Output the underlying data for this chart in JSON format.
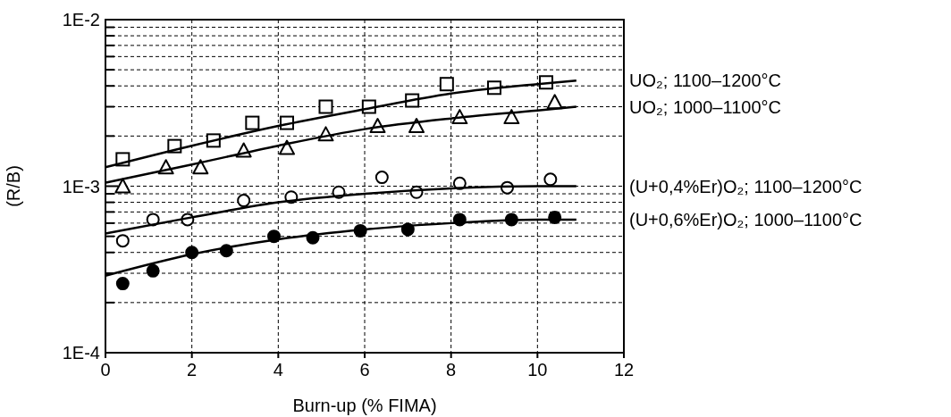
{
  "chart_data": {
    "type": "scatter",
    "xlabel": "Burn-up (% FIMA)",
    "ylabel": "(R/B)",
    "log": "y",
    "xlim": [
      0,
      12
    ],
    "xticks": [
      0,
      2,
      4,
      6,
      8,
      10,
      12
    ],
    "ylim": [
      0.0001,
      0.01
    ],
    "yticks": [
      {
        "value": 0.0001,
        "label": "1E-4"
      },
      {
        "value": 0.0002,
        "label": null
      },
      {
        "value": 0.0003,
        "label": null
      },
      {
        "value": 0.0004,
        "label": null
      },
      {
        "value": 0.0005,
        "label": null
      },
      {
        "value": 0.0006,
        "label": null
      },
      {
        "value": 0.0007,
        "label": null
      },
      {
        "value": 0.0008,
        "label": null
      },
      {
        "value": 0.0009,
        "label": null
      },
      {
        "value": 0.001,
        "label": "1E-3"
      },
      {
        "value": 0.002,
        "label": null
      },
      {
        "value": 0.003,
        "label": null
      },
      {
        "value": 0.004,
        "label": null
      },
      {
        "value": 0.005,
        "label": null
      },
      {
        "value": 0.006,
        "label": null
      },
      {
        "value": 0.007,
        "label": null
      },
      {
        "value": 0.008,
        "label": null
      },
      {
        "value": 0.009,
        "label": null
      },
      {
        "value": 0.01,
        "label": "1E-2"
      }
    ],
    "grid": true,
    "series": [
      {
        "marker": "square",
        "color": "#ffffff",
        "x": [
          0.4,
          1.6,
          2.5,
          3.4,
          4.2,
          5.1,
          6.1,
          7.1,
          7.9,
          9.0,
          10.2
        ],
        "values": [
          0.00145,
          0.00174,
          0.00188,
          0.0024,
          0.0024,
          0.003,
          0.003,
          0.00327,
          0.0041,
          0.0039,
          0.0042
        ]
      },
      {
        "marker": "triangle",
        "color": "#ffffff",
        "x": [
          0.4,
          1.4,
          2.2,
          3.2,
          4.2,
          5.1,
          6.3,
          7.2,
          8.2,
          9.4,
          10.4
        ],
        "values": [
          0.001,
          0.0013,
          0.0013,
          0.00164,
          0.0017,
          0.00205,
          0.0023,
          0.0023,
          0.0026,
          0.0026,
          0.0032
        ]
      },
      {
        "marker": "circle",
        "color": "#ffffff",
        "x": [
          0.4,
          1.1,
          1.9,
          3.2,
          4.3,
          5.4,
          6.4,
          7.2,
          8.2,
          9.3,
          10.3
        ],
        "values": [
          0.00047,
          0.00063,
          0.00063,
          0.00082,
          0.00086,
          0.00092,
          0.00113,
          0.00092,
          0.00104,
          0.00098,
          0.0011
        ]
      },
      {
        "marker": "circle",
        "color": "#000000",
        "x": [
          0.4,
          1.1,
          2.0,
          2.8,
          3.9,
          4.8,
          5.9,
          7.0,
          8.2,
          9.4,
          10.4
        ],
        "values": [
          0.00026,
          0.00031,
          0.0004,
          0.00041,
          0.0005,
          0.00049,
          0.00054,
          0.00055,
          0.00063,
          0.00063,
          0.00065
        ]
      },
      {
        "type": "line",
        "name": "UO₂; 1100–1200°C",
        "color": "#000000",
        "x": [
          0,
          2,
          4,
          6,
          8,
          10,
          10.9
        ],
        "values": [
          0.0013,
          0.00175,
          0.0023,
          0.0029,
          0.0036,
          0.0041,
          0.0043
        ]
      },
      {
        "type": "line",
        "name": "UO₂; 1000–1100°C",
        "color": "#000000",
        "x": [
          0,
          2,
          4,
          6,
          8,
          10,
          10.9
        ],
        "values": [
          0.00105,
          0.00135,
          0.00175,
          0.0022,
          0.00255,
          0.00285,
          0.003
        ]
      },
      {
        "type": "line",
        "name": "(U+0,4%Er)O₂; 1100–1200°C",
        "color": "#000000",
        "x": [
          0,
          2,
          4,
          6,
          8,
          10,
          10.9
        ],
        "values": [
          0.00052,
          0.00065,
          0.0008,
          0.0009,
          0.00097,
          0.001,
          0.001
        ]
      },
      {
        "type": "line",
        "name": "(U+0,6%Er)O₂; 1000–1100°C",
        "color": "#000000",
        "x": [
          0,
          2,
          4,
          6,
          8,
          10,
          10.9
        ],
        "values": [
          0.00029,
          0.00039,
          0.00048,
          0.00055,
          0.0006,
          0.00063,
          0.00063
        ]
      }
    ]
  }
}
